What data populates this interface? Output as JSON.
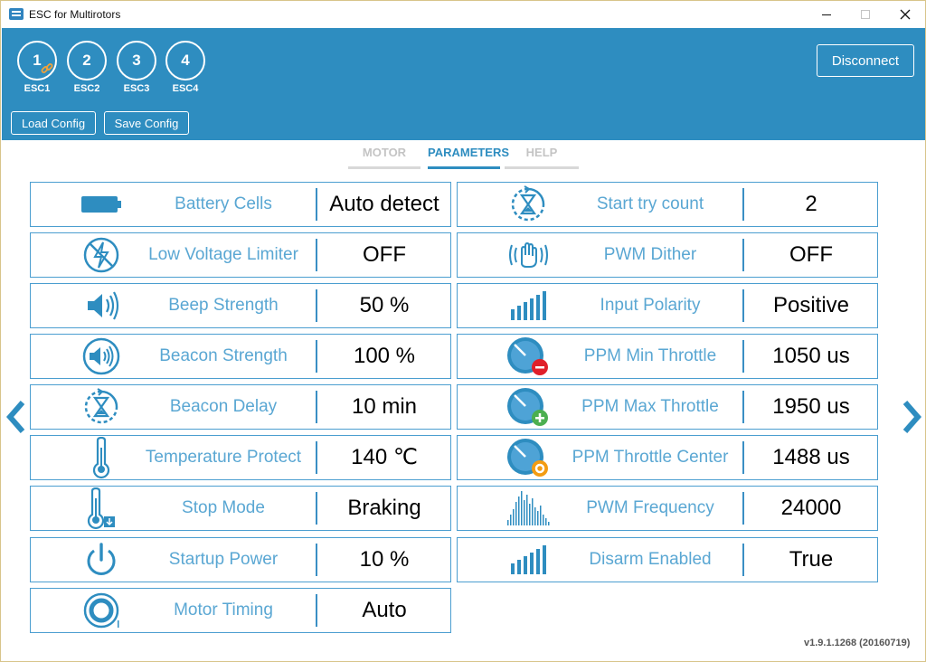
{
  "window": {
    "title": "ESC for Multirotors",
    "icon_label": "EM"
  },
  "header": {
    "escs": [
      {
        "number": "1",
        "label": "ESC1",
        "linked": true
      },
      {
        "number": "2",
        "label": "ESC2",
        "linked": false
      },
      {
        "number": "3",
        "label": "ESC3",
        "linked": false
      },
      {
        "number": "4",
        "label": "ESC4",
        "linked": false
      }
    ],
    "load_config": "Load Config",
    "save_config": "Save Config",
    "disconnect": "Disconnect"
  },
  "tabs": [
    {
      "label": "MOTOR",
      "active": false
    },
    {
      "label": "PARAMETERS",
      "active": true
    },
    {
      "label": "HELP",
      "active": false
    }
  ],
  "parameters_left": [
    {
      "name": "Battery Cells",
      "value": "Auto detect",
      "icon": "battery-icon"
    },
    {
      "name": "Low Voltage Limiter",
      "value": "OFF",
      "icon": "low-voltage-icon"
    },
    {
      "name": "Beep Strength",
      "value": "50 %",
      "icon": "speaker-icon"
    },
    {
      "name": "Beacon Strength",
      "value": "100 %",
      "icon": "beacon-speaker-icon"
    },
    {
      "name": "Beacon Delay",
      "value": "10 min",
      "icon": "hourglass-icon"
    },
    {
      "name": "Temperature Protect",
      "value": "140 ℃",
      "icon": "thermometer-icon"
    },
    {
      "name": "Stop Mode",
      "value": "Braking",
      "icon": "thermometer-stop-icon"
    },
    {
      "name": "Startup Power",
      "value": "10 %",
      "icon": "power-icon"
    },
    {
      "name": "Motor Timing",
      "value": "Auto",
      "icon": "timing-icon"
    }
  ],
  "parameters_right": [
    {
      "name": "Start try count",
      "value": "2",
      "icon": "hourglass-icon"
    },
    {
      "name": "PWM Dither",
      "value": "OFF",
      "icon": "vibration-icon"
    },
    {
      "name": "Input Polarity",
      "value": "Positive",
      "icon": "signal-bars-icon"
    },
    {
      "name": "PPM Min Throttle",
      "value": "1050 us",
      "icon": "gauge-min-icon"
    },
    {
      "name": "PPM Max Throttle",
      "value": "1950 us",
      "icon": "gauge-max-icon"
    },
    {
      "name": "PPM Throttle Center",
      "value": "1488 us",
      "icon": "gauge-center-icon"
    },
    {
      "name": "PWM Frequency",
      "value": "24000",
      "icon": "frequency-spectrum-icon"
    },
    {
      "name": "Disarm Enabled",
      "value": "True",
      "icon": "signal-bars-icon"
    }
  ],
  "version": "v1.9.1.1268 (20160719)",
  "colors": {
    "header_bg": "#2e8dc0",
    "accent": "#2e8dc0",
    "param_label": "#5aa7d3",
    "card_border": "#4b9ed0",
    "minus_badge": "#e0202a",
    "plus_badge": "#4caf50",
    "center_badge": "#f39c12"
  }
}
